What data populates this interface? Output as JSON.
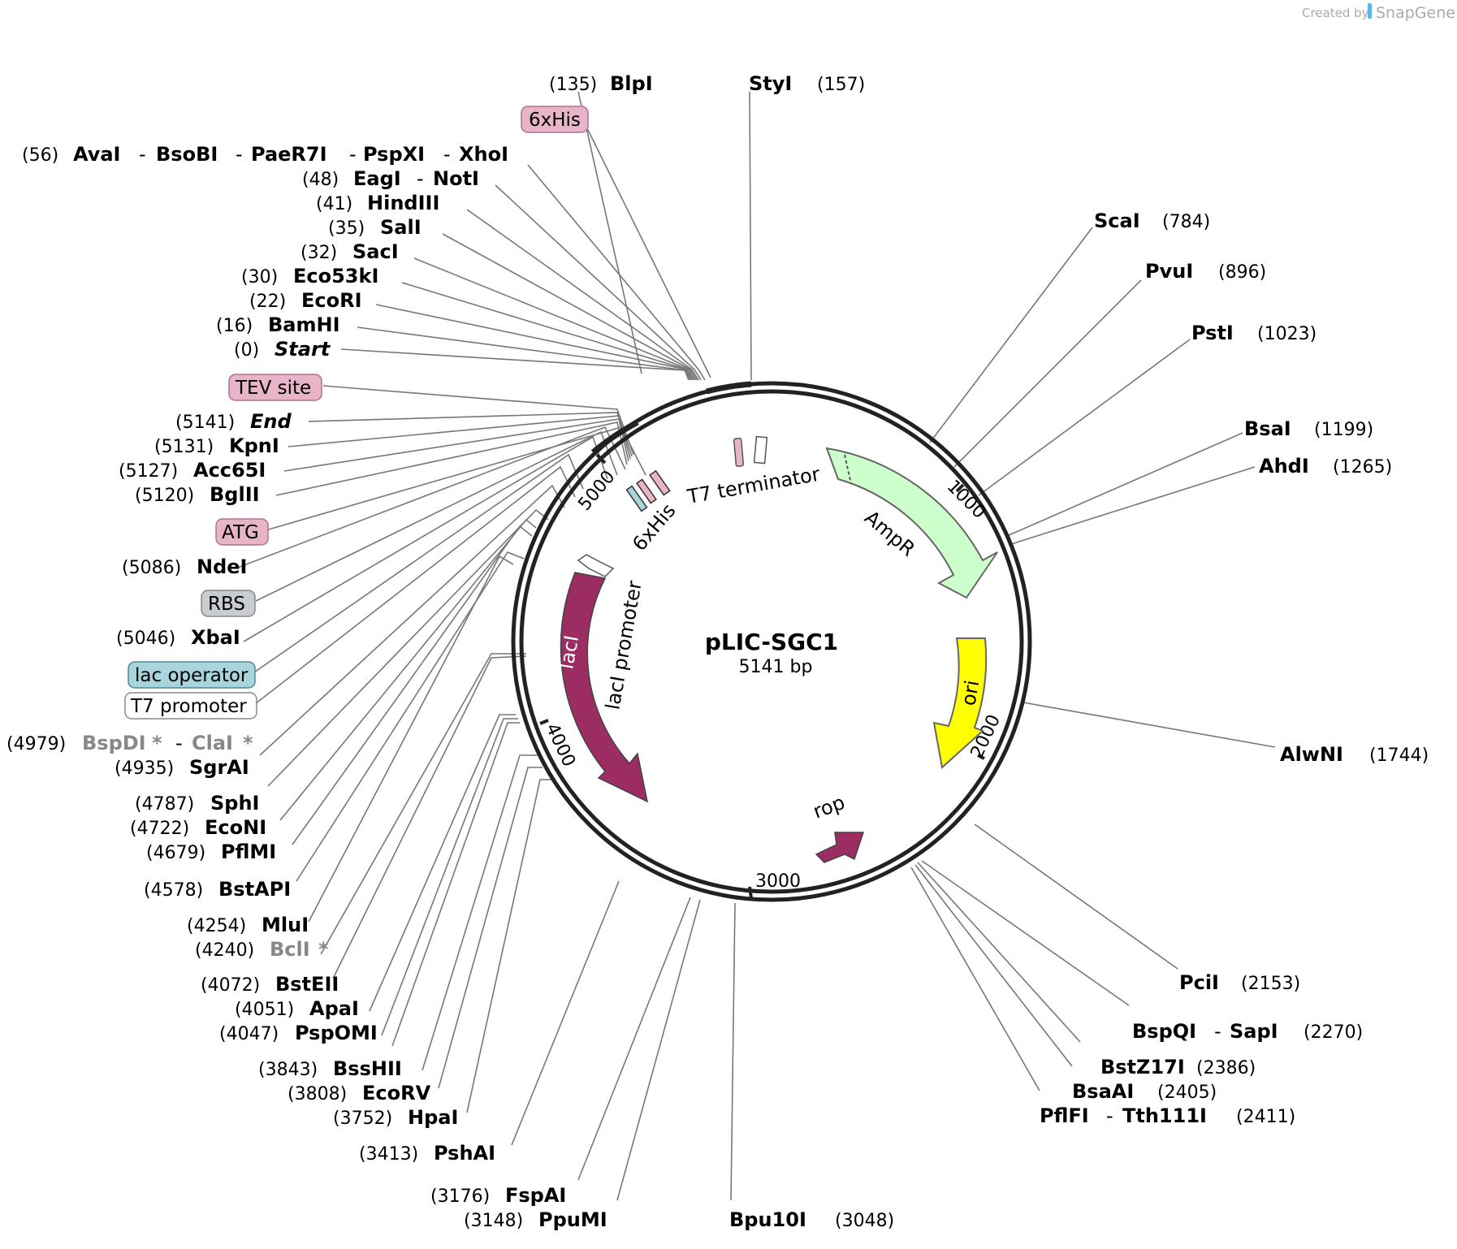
{
  "credit": {
    "prefix": "Created by",
    "brand": "SnapGene"
  },
  "plasmid": {
    "name": "pLIC-SGC1",
    "length": "5141 bp"
  },
  "ticks": [
    "1000",
    "2000",
    "3000",
    "4000",
    "5000"
  ],
  "features": {
    "t7_terminator": "T7 terminator",
    "ampr": "AmpR",
    "ori": "ori",
    "rop": "rop",
    "laci": "lacI",
    "laci_promoter": "lacI promoter",
    "six_his": "6xHis"
  },
  "tags": {
    "six_his": "6xHis",
    "tev_site": "TEV site",
    "atg": "ATG",
    "rbs": "RBS",
    "lac_operator": "lac operator",
    "t7_promoter": "T7 promoter"
  },
  "colors": {
    "feature_purple": "#9b2d62",
    "ampr_green": "#ccffcc",
    "ori_yellow": "#ffff00",
    "tag_pink": "#e8b4c8",
    "tag_gray": "#c8ccd0",
    "tag_blue": "#a8d4dc"
  },
  "sites": {
    "blpi": {
      "pos": "(135)",
      "name": "BlpI"
    },
    "styi": {
      "pos": "(157)",
      "name": "StyI"
    },
    "avai": {
      "pos": "(56)",
      "names": [
        "AvaI",
        "BsoBI",
        "PaeR7I",
        "PspXI",
        "XhoI"
      ]
    },
    "eagi": {
      "pos": "(48)",
      "names": [
        "EagI",
        "NotI"
      ]
    },
    "hindiii": {
      "pos": "(41)",
      "name": "HindIII"
    },
    "sali": {
      "pos": "(35)",
      "name": "SalI"
    },
    "saci": {
      "pos": "(32)",
      "name": "SacI"
    },
    "eco53ki": {
      "pos": "(30)",
      "name": "Eco53kI"
    },
    "ecori": {
      "pos": "(22)",
      "name": "EcoRI"
    },
    "bamhi": {
      "pos": "(16)",
      "name": "BamHI"
    },
    "start": {
      "pos": "(0)",
      "name": "Start"
    },
    "end": {
      "pos": "(5141)",
      "name": "End"
    },
    "kpni": {
      "pos": "(5131)",
      "name": "KpnI"
    },
    "acc65i": {
      "pos": "(5127)",
      "name": "Acc65I"
    },
    "bglii": {
      "pos": "(5120)",
      "name": "BglII"
    },
    "ndei": {
      "pos": "(5086)",
      "name": "NdeI"
    },
    "xbai": {
      "pos": "(5046)",
      "name": "XbaI"
    },
    "bspdi": {
      "pos": "(4979)",
      "names": [
        "BspDI",
        "ClaI"
      ],
      "star": "*"
    },
    "sgrai": {
      "pos": "(4935)",
      "name": "SgrAI"
    },
    "sphi": {
      "pos": "(4787)",
      "name": "SphI"
    },
    "econi": {
      "pos": "(4722)",
      "name": "EcoNI"
    },
    "pflmi": {
      "pos": "(4679)",
      "name": "PflMI"
    },
    "bstapi": {
      "pos": "(4578)",
      "name": "BstAPI"
    },
    "mlui": {
      "pos": "(4254)",
      "name": "MluI"
    },
    "bcli": {
      "pos": "(4240)",
      "name": "BclI",
      "star": "*"
    },
    "bsteii": {
      "pos": "(4072)",
      "name": "BstEII"
    },
    "apai": {
      "pos": "(4051)",
      "name": "ApaI"
    },
    "pspomi": {
      "pos": "(4047)",
      "name": "PspOMI"
    },
    "bsshii": {
      "pos": "(3843)",
      "name": "BssHII"
    },
    "ecorv": {
      "pos": "(3808)",
      "name": "EcoRV"
    },
    "hpai": {
      "pos": "(3752)",
      "name": "HpaI"
    },
    "pshai": {
      "pos": "(3413)",
      "name": "PshAI"
    },
    "fspai": {
      "pos": "(3176)",
      "name": "FspAI"
    },
    "ppumi": {
      "pos": "(3148)",
      "name": "PpuMI"
    },
    "bpu10i": {
      "pos": "(3048)",
      "name": "Bpu10I"
    },
    "scai": {
      "pos": "(784)",
      "name": "ScaI"
    },
    "pvui": {
      "pos": "(896)",
      "name": "PvuI"
    },
    "psti": {
      "pos": "(1023)",
      "name": "PstI"
    },
    "bsai": {
      "pos": "(1199)",
      "name": "BsaI"
    },
    "ahdi": {
      "pos": "(1265)",
      "name": "AhdI"
    },
    "alwni": {
      "pos": "(1744)",
      "name": "AlwNI"
    },
    "pcii": {
      "pos": "(2153)",
      "name": "PciI"
    },
    "bspqi": {
      "pos": "(2270)",
      "names": [
        "BspQI",
        "SapI"
      ]
    },
    "bstz17i": {
      "pos": "(2386)",
      "name": "BstZ17I"
    },
    "bsaai": {
      "pos": "(2405)",
      "name": "BsaAI"
    },
    "pflfi": {
      "pos": "(2411)",
      "names": [
        "PflFI",
        "Tth111I"
      ]
    }
  }
}
